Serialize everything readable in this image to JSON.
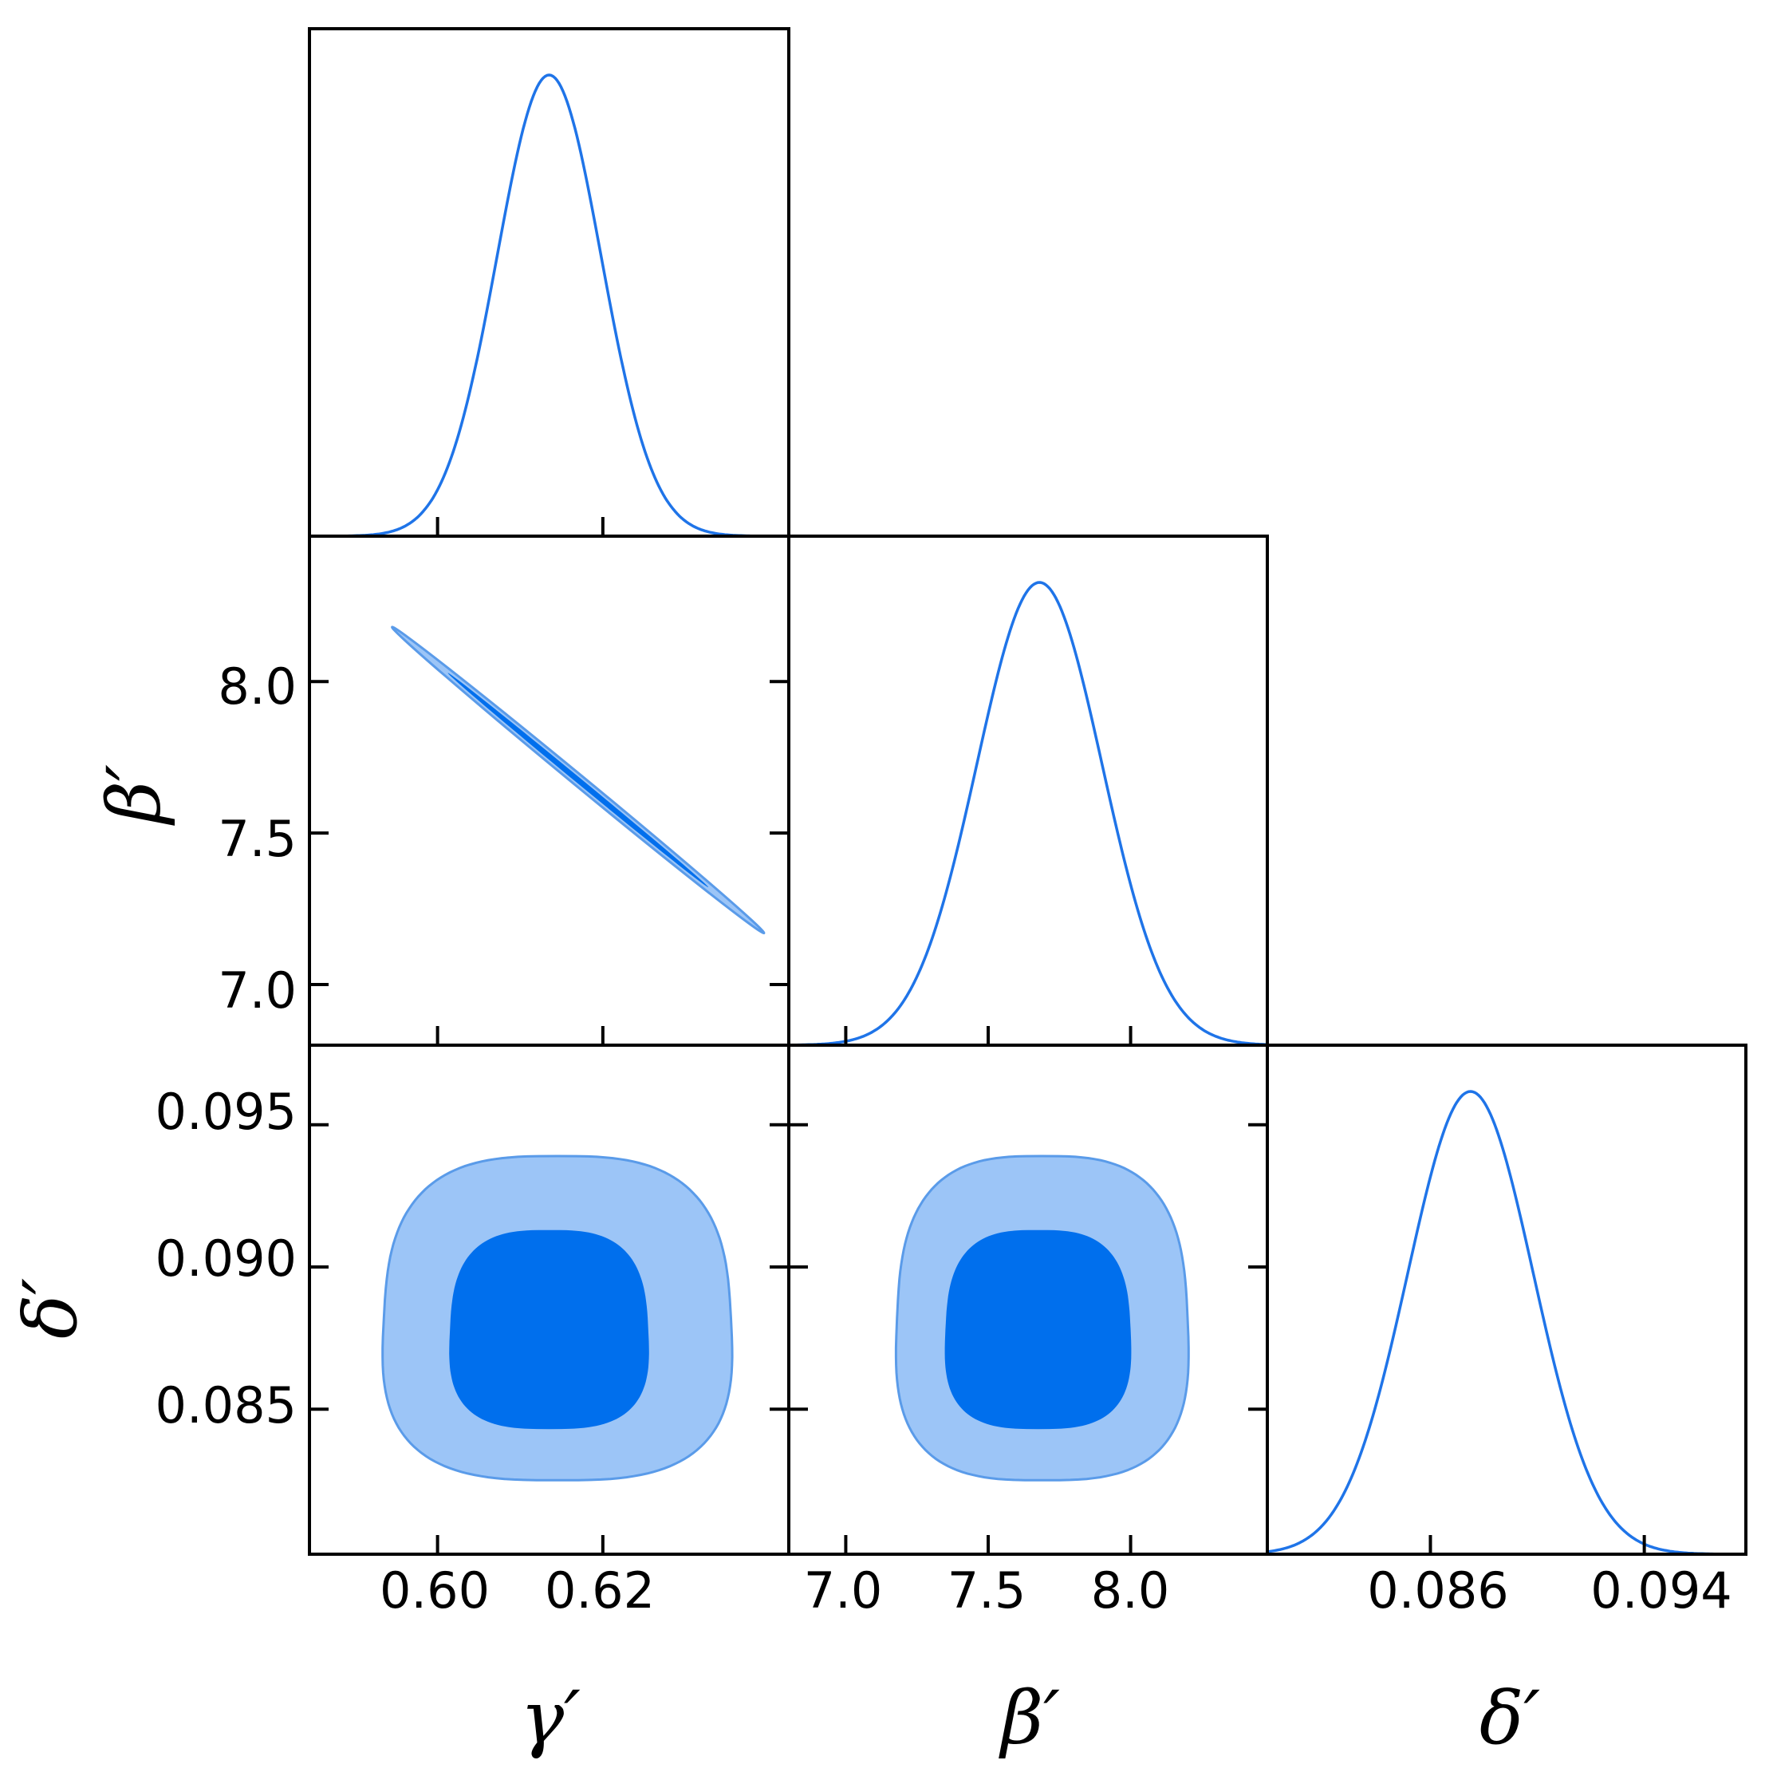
{
  "chart_data": {
    "type": "corner",
    "parameters": [
      {
        "key": "gamma",
        "label": "γ′",
        "range": [
          0.5845,
          0.6425
        ],
        "ticks": [
          0.6,
          0.62
        ],
        "tick_labels": [
          "0.60",
          "0.62"
        ]
      },
      {
        "key": "beta",
        "label": "β′",
        "range": [
          6.8,
          8.48
        ],
        "ticks": [
          7.0,
          7.5,
          8.0
        ],
        "tick_labels": [
          "7.0",
          "7.5",
          "8.0"
        ]
      },
      {
        "key": "delta",
        "label": "δ′",
        "range": [
          0.0799,
          0.0978
        ],
        "ticks": [
          0.086,
          0.094
        ],
        "tick_labels": [
          "0.086",
          "0.094"
        ],
        "y_ticks": [
          0.085,
          0.09,
          0.095
        ],
        "y_tick_labels": [
          "0.085",
          "0.090",
          "0.095"
        ]
      }
    ],
    "marginals": [
      {
        "param": "gamma",
        "mean": 0.6135,
        "sd": 0.0063
      },
      {
        "param": "beta",
        "mean": 7.68,
        "sd": 0.22
      },
      {
        "param": "delta",
        "mean": 0.0875,
        "sd": 0.00235
      }
    ],
    "contours": [
      {
        "x": "gamma",
        "y": "beta",
        "x_ends": [
          0.5945,
          0.6395
        ],
        "y_ends": [
          8.18,
          7.17
        ],
        "shape": "thin-diagonal"
      },
      {
        "x": "gamma",
        "y": "delta",
        "inner_x": [
          0.6015,
          0.6255
        ],
        "inner_y": [
          0.0843,
          0.0913
        ],
        "outer_x": [
          0.5935,
          0.6355
        ],
        "outer_y": [
          0.0825,
          0.0939
        ]
      },
      {
        "x": "beta",
        "y": "delta",
        "inner_x": [
          7.35,
          8.0
        ],
        "inner_y": [
          0.0843,
          0.0913
        ],
        "outer_x": [
          7.18,
          8.2
        ],
        "outer_y": [
          0.0825,
          0.0939
        ]
      }
    ],
    "colors": {
      "line": "#1f74e8",
      "inner_fill": "#006fed",
      "outer_fill": "#9cc5f7",
      "outer_stroke": "#5a9be9"
    },
    "levels": [
      "68%",
      "95%"
    ],
    "grid": false
  }
}
